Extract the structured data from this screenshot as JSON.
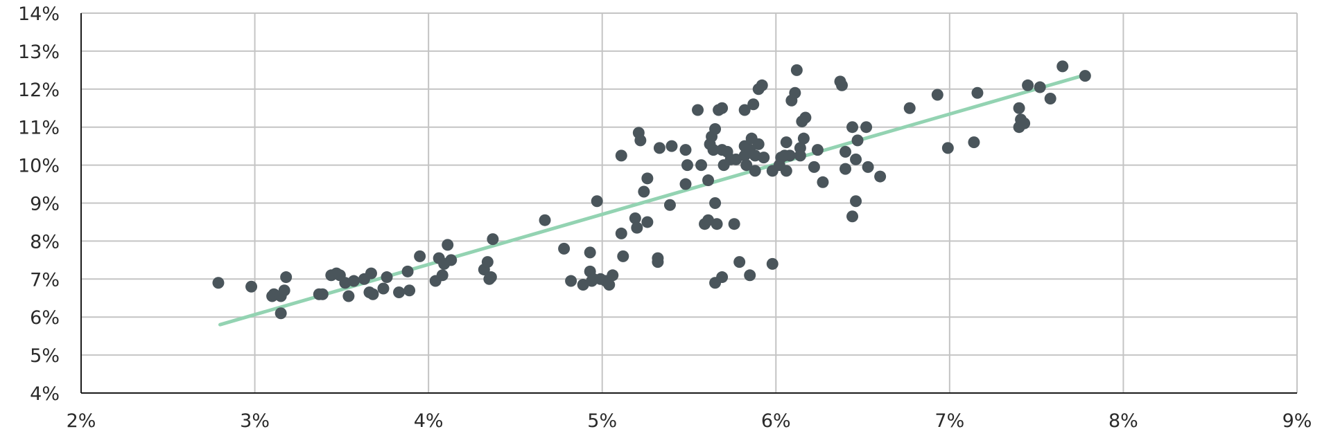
{
  "chart_data": {
    "type": "scatter",
    "title": "",
    "xlabel": "",
    "ylabel": "",
    "xlim": [
      0.02,
      0.09
    ],
    "ylim": [
      0.04,
      0.14
    ],
    "x_ticks": [
      "2%",
      "3%",
      "4%",
      "5%",
      "6%",
      "7%",
      "8%",
      "9%"
    ],
    "y_ticks": [
      "4%",
      "5%",
      "6%",
      "7%",
      "8%",
      "9%",
      "10%",
      "11%",
      "12%",
      "13%",
      "14%"
    ],
    "grid": true,
    "legend": "none",
    "colors": {
      "points": "#4a555b",
      "trendline": "#93d3b2",
      "grid": "#c4c4c4",
      "axis": "#1a1a1a"
    },
    "trendline": {
      "x": [
        0.028,
        0.078
      ],
      "y": [
        0.058,
        0.124
      ]
    },
    "series": [
      {
        "points": [
          [
            0.0279,
            0.069
          ],
          [
            0.0298,
            0.068
          ],
          [
            0.031,
            0.0655
          ],
          [
            0.0311,
            0.066
          ],
          [
            0.0315,
            0.0655
          ],
          [
            0.0315,
            0.061
          ],
          [
            0.0317,
            0.067
          ],
          [
            0.0318,
            0.0705
          ],
          [
            0.0337,
            0.066
          ],
          [
            0.0339,
            0.066
          ],
          [
            0.0344,
            0.071
          ],
          [
            0.0347,
            0.0715
          ],
          [
            0.0349,
            0.071
          ],
          [
            0.0352,
            0.069
          ],
          [
            0.0354,
            0.0655
          ],
          [
            0.0357,
            0.0695
          ],
          [
            0.0363,
            0.07
          ],
          [
            0.0366,
            0.0665
          ],
          [
            0.0367,
            0.0715
          ],
          [
            0.0368,
            0.066
          ],
          [
            0.0374,
            0.0675
          ],
          [
            0.0376,
            0.0705
          ],
          [
            0.0383,
            0.0665
          ],
          [
            0.0388,
            0.072
          ],
          [
            0.0389,
            0.067
          ],
          [
            0.0395,
            0.076
          ],
          [
            0.0404,
            0.0695
          ],
          [
            0.0406,
            0.0755
          ],
          [
            0.0408,
            0.071
          ],
          [
            0.0409,
            0.074
          ],
          [
            0.0411,
            0.079
          ],
          [
            0.0413,
            0.075
          ],
          [
            0.0432,
            0.0725
          ],
          [
            0.0434,
            0.0745
          ],
          [
            0.0435,
            0.07
          ],
          [
            0.0436,
            0.0705
          ],
          [
            0.0437,
            0.0805
          ],
          [
            0.0467,
            0.0855
          ],
          [
            0.0478,
            0.078
          ],
          [
            0.0482,
            0.0695
          ],
          [
            0.0489,
            0.0685
          ],
          [
            0.0493,
            0.072
          ],
          [
            0.0494,
            0.0695
          ],
          [
            0.0495,
            0.07
          ],
          [
            0.0497,
            0.0905
          ],
          [
            0.0499,
            0.07
          ],
          [
            0.0502,
            0.0695
          ],
          [
            0.0504,
            0.0685
          ],
          [
            0.0493,
            0.077
          ],
          [
            0.0506,
            0.071
          ],
          [
            0.0511,
            0.082
          ],
          [
            0.0512,
            0.076
          ],
          [
            0.0511,
            0.1025
          ],
          [
            0.0519,
            0.086
          ],
          [
            0.052,
            0.0835
          ],
          [
            0.0521,
            0.1085
          ],
          [
            0.0522,
            0.1065
          ],
          [
            0.0524,
            0.093
          ],
          [
            0.0526,
            0.085
          ],
          [
            0.0526,
            0.0965
          ],
          [
            0.0532,
            0.0755
          ],
          [
            0.0532,
            0.0745
          ],
          [
            0.0533,
            0.1045
          ],
          [
            0.0539,
            0.0895
          ],
          [
            0.054,
            0.105
          ],
          [
            0.0548,
            0.104
          ],
          [
            0.0548,
            0.095
          ],
          [
            0.0549,
            0.1
          ],
          [
            0.0555,
            0.1145
          ],
          [
            0.0557,
            0.1
          ],
          [
            0.0559,
            0.0845
          ],
          [
            0.0561,
            0.0855
          ],
          [
            0.0561,
            0.096
          ],
          [
            0.0562,
            0.1055
          ],
          [
            0.0563,
            0.1075
          ],
          [
            0.0564,
            0.104
          ],
          [
            0.0565,
            0.09
          ],
          [
            0.0565,
            0.1095
          ],
          [
            0.0565,
            0.069
          ],
          [
            0.0566,
            0.0845
          ],
          [
            0.0567,
            0.1145
          ],
          [
            0.0569,
            0.104
          ],
          [
            0.0569,
            0.115
          ],
          [
            0.0569,
            0.0705
          ],
          [
            0.057,
            0.1
          ],
          [
            0.0572,
            0.1035
          ],
          [
            0.0574,
            0.1015
          ],
          [
            0.0576,
            0.0845
          ],
          [
            0.0577,
            0.1015
          ],
          [
            0.0579,
            0.0745
          ],
          [
            0.0582,
            0.1145
          ],
          [
            0.0582,
            0.1025
          ],
          [
            0.0582,
            0.105
          ],
          [
            0.0583,
            0.1
          ],
          [
            0.0585,
            0.104
          ],
          [
            0.0585,
            0.071
          ],
          [
            0.0586,
            0.107
          ],
          [
            0.0587,
            0.116
          ],
          [
            0.0588,
            0.0985
          ],
          [
            0.0588,
            0.1025
          ],
          [
            0.059,
            0.1055
          ],
          [
            0.059,
            0.12
          ],
          [
            0.0592,
            0.121
          ],
          [
            0.0593,
            0.102
          ],
          [
            0.0598,
            0.074
          ],
          [
            0.0598,
            0.0985
          ],
          [
            0.0602,
            0.1
          ],
          [
            0.0603,
            0.102
          ],
          [
            0.0605,
            0.1025
          ],
          [
            0.0606,
            0.0985
          ],
          [
            0.0606,
            0.106
          ],
          [
            0.0608,
            0.1025
          ],
          [
            0.0609,
            0.117
          ],
          [
            0.0611,
            0.119
          ],
          [
            0.0612,
            0.125
          ],
          [
            0.0614,
            0.1045
          ],
          [
            0.0614,
            0.1025
          ],
          [
            0.0615,
            0.1115
          ],
          [
            0.0616,
            0.107
          ],
          [
            0.0617,
            0.1125
          ],
          [
            0.0622,
            0.0995
          ],
          [
            0.0624,
            0.104
          ],
          [
            0.0627,
            0.0955
          ],
          [
            0.0637,
            0.122
          ],
          [
            0.0638,
            0.121
          ],
          [
            0.064,
            0.1035
          ],
          [
            0.064,
            0.099
          ],
          [
            0.0644,
            0.0865
          ],
          [
            0.0644,
            0.11
          ],
          [
            0.0646,
            0.0905
          ],
          [
            0.0646,
            0.1015
          ],
          [
            0.0647,
            0.1065
          ],
          [
            0.0652,
            0.11
          ],
          [
            0.0653,
            0.0995
          ],
          [
            0.066,
            0.097
          ],
          [
            0.0677,
            0.115
          ],
          [
            0.0693,
            0.1185
          ],
          [
            0.0699,
            0.1045
          ],
          [
            0.0714,
            0.106
          ],
          [
            0.0716,
            0.119
          ],
          [
            0.074,
            0.115
          ],
          [
            0.074,
            0.11
          ],
          [
            0.0741,
            0.112
          ],
          [
            0.0743,
            0.111
          ],
          [
            0.0745,
            0.121
          ],
          [
            0.0752,
            0.1205
          ],
          [
            0.0758,
            0.1175
          ],
          [
            0.0765,
            0.126
          ],
          [
            0.0778,
            0.1235
          ]
        ]
      }
    ]
  }
}
